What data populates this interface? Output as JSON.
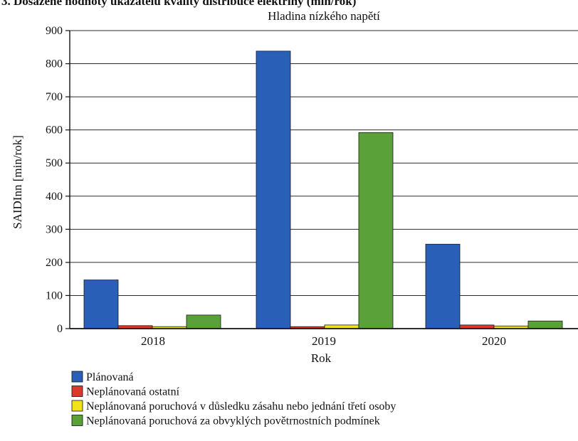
{
  "header_fragment": "3. Dosažené hodnoty ukazatelů kvality distribuce elektřiny (min/rok)",
  "chart_data": {
    "type": "bar",
    "title": "Hladina nízkého napětí",
    "xlabel": "Rok",
    "ylabel": "SAIDInn [min/rok]",
    "categories": [
      "2018",
      "2019",
      "2020"
    ],
    "ylim": [
      0,
      900
    ],
    "yticks": [
      0,
      100,
      200,
      300,
      400,
      500,
      600,
      700,
      800,
      900
    ],
    "grid": true,
    "legend_position": "bottom-left",
    "series": [
      {
        "name": "Plánovaná",
        "color": "#2a5fb8",
        "values": [
          147,
          838,
          255
        ]
      },
      {
        "name": "Neplánovaná ostatní",
        "color": "#d93a2b",
        "values": [
          9,
          6,
          11
        ]
      },
      {
        "name": "Neplánovaná poruchová v důsledku zásahu nebo jednání třetí osoby",
        "color": "#f2e21c",
        "values": [
          6,
          11,
          8
        ]
      },
      {
        "name": "Neplánovaná poruchová za obvyklých povětrnostních podmínek",
        "color": "#5aa13a",
        "values": [
          41,
          592,
          23
        ]
      }
    ]
  }
}
